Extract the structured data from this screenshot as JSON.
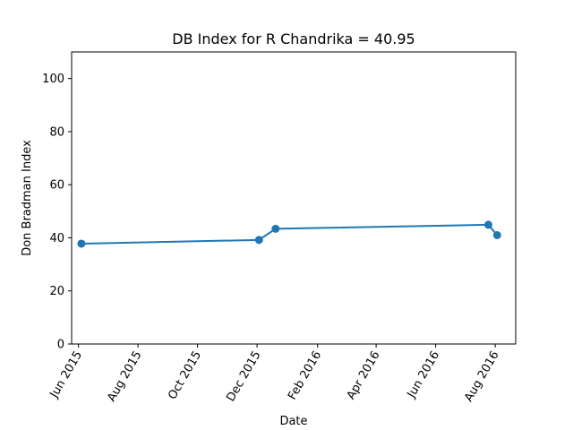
{
  "chart_data": {
    "type": "line",
    "title": "DB Index for R Chandrika = 40.95",
    "xlabel": "Date",
    "ylabel": "Don Bradman Index",
    "ylim": [
      0,
      110
    ],
    "yticks": [
      0,
      20,
      40,
      60,
      80,
      100
    ],
    "xlim": [
      "2015-05-25",
      "2016-08-22"
    ],
    "xticks": [
      {
        "date": "2015-06-01",
        "label": "Jun 2015"
      },
      {
        "date": "2015-08-01",
        "label": "Aug 2015"
      },
      {
        "date": "2015-10-01",
        "label": "Oct 2015"
      },
      {
        "date": "2015-12-01",
        "label": "Dec 2015"
      },
      {
        "date": "2016-02-01",
        "label": "Feb 2016"
      },
      {
        "date": "2016-04-01",
        "label": "Apr 2016"
      },
      {
        "date": "2016-06-01",
        "label": "Jun 2016"
      },
      {
        "date": "2016-08-01",
        "label": "Aug 2016"
      }
    ],
    "series": [
      {
        "color": "#1f77b4",
        "marker": "circle",
        "points": [
          {
            "x": "2015-06-04",
            "y": 37.8
          },
          {
            "x": "2015-12-03",
            "y": 39.2
          },
          {
            "x": "2015-12-20",
            "y": 43.4
          },
          {
            "x": "2016-07-25",
            "y": 44.9
          },
          {
            "x": "2016-08-03",
            "y": 41.0
          }
        ]
      }
    ],
    "grid": false,
    "legend": "none"
  }
}
